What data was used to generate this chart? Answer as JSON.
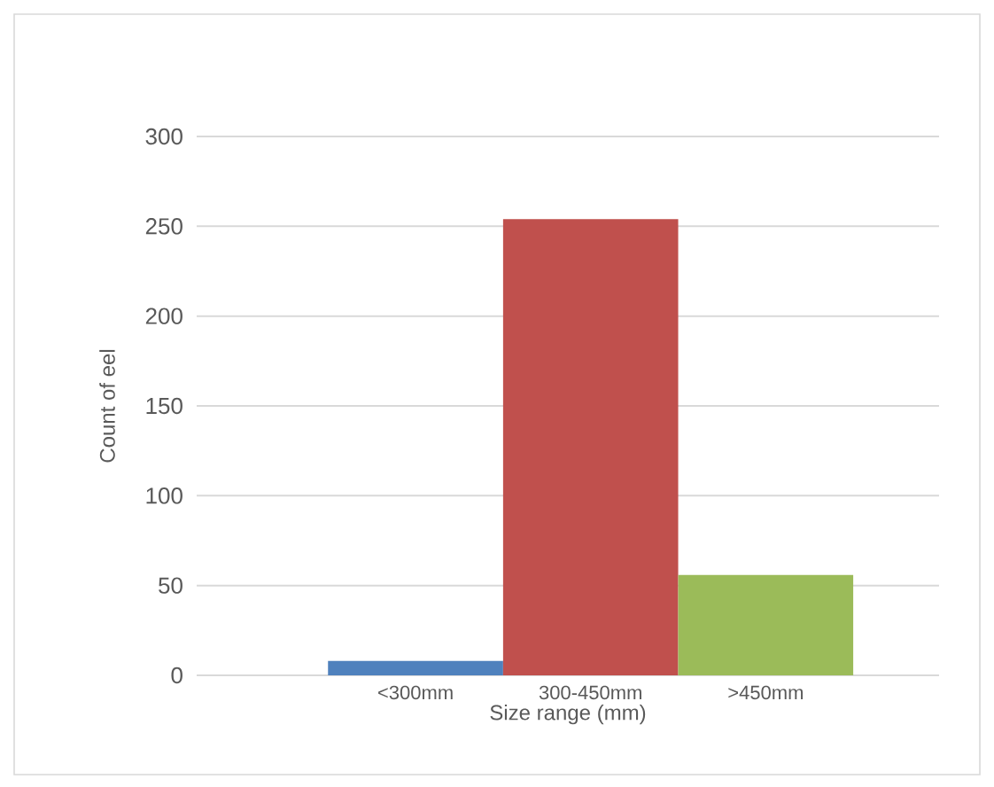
{
  "chart_data": {
    "type": "bar",
    "xlabel": "Size range (mm)",
    "ylabel": "Count of eel",
    "categories": [
      "<300mm",
      "300-450mm",
      ">450mm"
    ],
    "values": [
      8,
      254,
      56
    ],
    "colors": [
      "#4f81bd",
      "#c0504d",
      "#9bbb59"
    ],
    "ylim": [
      0,
      300
    ],
    "yticks": [
      0,
      50,
      100,
      150,
      200,
      250,
      300
    ],
    "grid": "y"
  }
}
